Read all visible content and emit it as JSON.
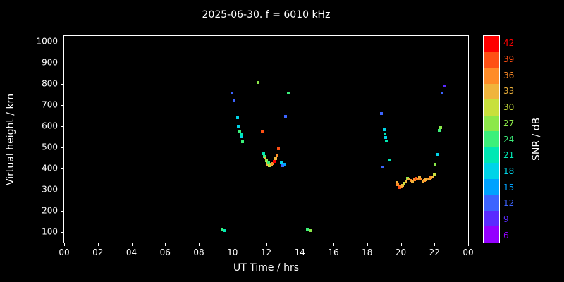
{
  "title": "2025-06-30. f = 6010 kHz",
  "axes": {
    "x_label": "UT Time / hrs",
    "y_label": "Virtual height / km",
    "colorbar_label": "SNR / dB"
  },
  "colors": {
    "background": "#000000",
    "foreground": "#ffffff"
  },
  "chart_data": {
    "type": "scatter",
    "title": "2025-06-30. f = 6010 kHz",
    "xlabel": "UT Time / hrs",
    "ylabel": "Virtual height / km",
    "xlim": [
      0,
      24
    ],
    "ylim": [
      50,
      1025
    ],
    "grid": false,
    "x_ticks": {
      "values": [
        0,
        2,
        4,
        6,
        8,
        10,
        12,
        14,
        16,
        18,
        20,
        22,
        24
      ],
      "labels": [
        "00",
        "02",
        "04",
        "06",
        "08",
        "10",
        "12",
        "14",
        "16",
        "18",
        "20",
        "22",
        "00"
      ]
    },
    "y_ticks": {
      "values": [
        100,
        200,
        300,
        400,
        500,
        600,
        700,
        800,
        900,
        1000
      ],
      "labels": [
        "100",
        "200",
        "300",
        "400",
        "500",
        "600",
        "700",
        "800",
        "900",
        "1000"
      ]
    },
    "colorbar": {
      "label": "SNR / dB",
      "position": "right",
      "values": [
        6,
        9,
        12,
        15,
        18,
        21,
        24,
        27,
        30,
        33,
        36,
        39,
        42
      ],
      "colors": [
        "#9400ff",
        "#5a2bff",
        "#3c64ff",
        "#00a2ff",
        "#00d4e8",
        "#00e8b4",
        "#3cf07a",
        "#8ce84a",
        "#c8e03c",
        "#f0b43c",
        "#ff8c28",
        "#ff5014",
        "#ff0000"
      ]
    },
    "points_format": [
      "ut_hours",
      "virtual_height_km",
      "snr_db"
    ],
    "points": [
      [
        9.4,
        110,
        24
      ],
      [
        9.55,
        105,
        21
      ],
      [
        9.95,
        755,
        12
      ],
      [
        10.1,
        718,
        12
      ],
      [
        10.3,
        640,
        18
      ],
      [
        10.35,
        600,
        18
      ],
      [
        10.45,
        575,
        24
      ],
      [
        10.5,
        548,
        18
      ],
      [
        10.55,
        560,
        21
      ],
      [
        10.6,
        525,
        24
      ],
      [
        11.5,
        805,
        27
      ],
      [
        11.75,
        575,
        39
      ],
      [
        11.85,
        470,
        21
      ],
      [
        11.9,
        455,
        24
      ],
      [
        11.95,
        448,
        33
      ],
      [
        12.0,
        436,
        27
      ],
      [
        12.05,
        426,
        30
      ],
      [
        12.1,
        418,
        33
      ],
      [
        12.15,
        430,
        24
      ],
      [
        12.2,
        412,
        30
      ],
      [
        12.25,
        420,
        27
      ],
      [
        12.3,
        415,
        33
      ],
      [
        12.4,
        422,
        36
      ],
      [
        12.5,
        432,
        42
      ],
      [
        12.55,
        445,
        33
      ],
      [
        12.65,
        458,
        36
      ],
      [
        12.75,
        492,
        39
      ],
      [
        12.9,
        428,
        18
      ],
      [
        13.0,
        412,
        12
      ],
      [
        13.05,
        418,
        15
      ],
      [
        13.15,
        645,
        12
      ],
      [
        13.3,
        755,
        24
      ],
      [
        14.45,
        112,
        24
      ],
      [
        14.6,
        106,
        27
      ],
      [
        18.85,
        660,
        12
      ],
      [
        18.95,
        405,
        12
      ],
      [
        19.0,
        582,
        18
      ],
      [
        19.05,
        562,
        21
      ],
      [
        19.1,
        545,
        18
      ],
      [
        19.15,
        528,
        21
      ],
      [
        19.3,
        440,
        21
      ],
      [
        19.75,
        332,
        33
      ],
      [
        19.8,
        322,
        36
      ],
      [
        19.9,
        312,
        36
      ],
      [
        19.95,
        308,
        39
      ],
      [
        20.05,
        312,
        36
      ],
      [
        20.1,
        318,
        33
      ],
      [
        20.2,
        328,
        30
      ],
      [
        20.3,
        338,
        33
      ],
      [
        20.4,
        352,
        27
      ],
      [
        20.5,
        348,
        33
      ],
      [
        20.6,
        342,
        36
      ],
      [
        20.7,
        338,
        33
      ],
      [
        20.8,
        345,
        36
      ],
      [
        20.9,
        352,
        39
      ],
      [
        21.0,
        350,
        36
      ],
      [
        21.1,
        356,
        33
      ],
      [
        21.2,
        348,
        36
      ],
      [
        21.3,
        338,
        33
      ],
      [
        21.4,
        342,
        36
      ],
      [
        21.5,
        345,
        33
      ],
      [
        21.6,
        350,
        36
      ],
      [
        21.7,
        348,
        33
      ],
      [
        21.8,
        355,
        36
      ],
      [
        21.9,
        360,
        33
      ],
      [
        22.0,
        372,
        30
      ],
      [
        22.05,
        420,
        27
      ],
      [
        22.15,
        465,
        18
      ],
      [
        22.3,
        578,
        24
      ],
      [
        22.35,
        592,
        27
      ],
      [
        22.45,
        755,
        12
      ],
      [
        22.6,
        790,
        9
      ]
    ]
  }
}
